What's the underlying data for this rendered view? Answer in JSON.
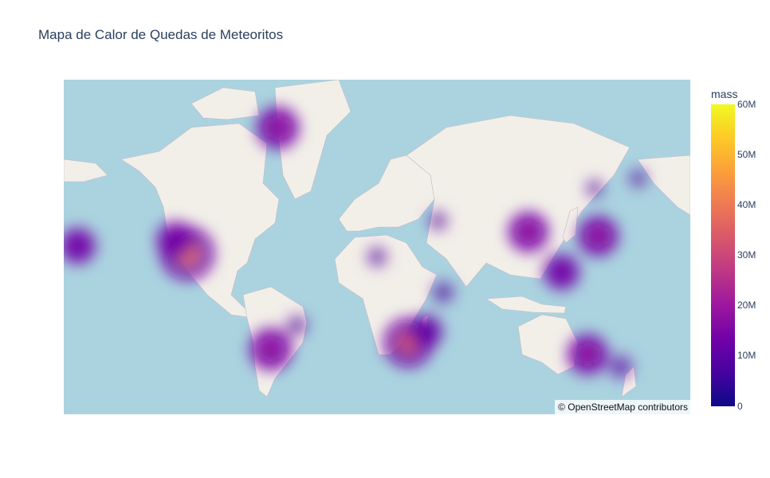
{
  "title": "Mapa de Calor de Quedas de Meteoritos",
  "attribution": "© OpenStreetMap contributors",
  "colorbar": {
    "title": "mass",
    "ticks": [
      "60M",
      "50M",
      "40M",
      "30M",
      "20M",
      "10M",
      "0"
    ],
    "colorscale": [
      "#0d0887",
      "#46039f",
      "#7201a8",
      "#9c179e",
      "#bd3786",
      "#d8576b",
      "#ed7953",
      "#fb9f3a",
      "#fdca26",
      "#f0f921"
    ]
  },
  "colors": {
    "water": "#aad3df",
    "land": "#f2efe9",
    "border": "#c8b9c9"
  },
  "chart_data": {
    "type": "heatmap",
    "map_style": "open-street-map",
    "z_name": "mass",
    "z_range": [
      0,
      60000000
    ],
    "points": [
      {
        "lon": -57,
        "lat": 76,
        "mass": 14000000
      },
      {
        "lon": -109,
        "lat": 34,
        "mass": 28000000
      },
      {
        "lon": -116,
        "lat": 41,
        "mass": 9000000
      },
      {
        "lon": -61,
        "lat": -27,
        "mass": 14000000
      },
      {
        "lon": 18,
        "lat": -23,
        "mass": 22000000
      },
      {
        "lon": 28,
        "lat": -16,
        "mass": 6000000
      },
      {
        "lon": 87,
        "lat": 45,
        "mass": 12000000
      },
      {
        "lon": 127,
        "lat": 43,
        "mass": 12000000
      },
      {
        "lon": 106,
        "lat": 23,
        "mass": 8000000
      },
      {
        "lon": 121,
        "lat": -30,
        "mass": 12000000
      },
      {
        "lon": 140,
        "lat": -37,
        "mass": 3000000
      },
      {
        "lon": 38,
        "lat": 10,
        "mass": 2000000
      },
      {
        "lon": -46,
        "lat": -12,
        "mass": 1500000
      },
      {
        "lon": 0,
        "lat": 32,
        "mass": 1200000
      },
      {
        "lon": 35,
        "lat": 50,
        "mass": 900000
      },
      {
        "lon": 150,
        "lat": 65,
        "mass": 600000
      },
      {
        "lon": 125,
        "lat": 62,
        "mass": 500000
      },
      {
        "lon": -172,
        "lat": 38,
        "mass": 8000000
      }
    ]
  }
}
